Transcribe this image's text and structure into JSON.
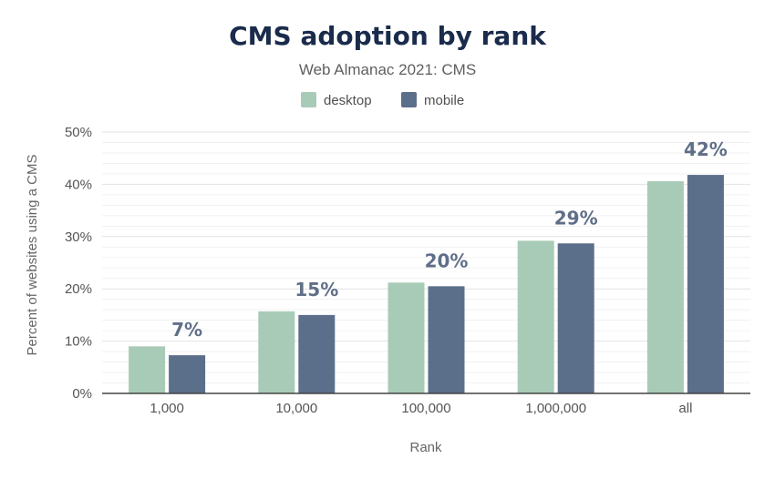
{
  "chart_data": {
    "type": "bar",
    "title": "CMS adoption by rank",
    "subtitle": "Web Almanac 2021: CMS",
    "xlabel": "Rank",
    "ylabel": "Percent of websites using a CMS",
    "categories": [
      "1,000",
      "10,000",
      "100,000",
      "1,000,000",
      "all"
    ],
    "series": [
      {
        "name": "desktop",
        "color": "#a8cbb7",
        "values": [
          9.0,
          15.7,
          21.2,
          29.2,
          40.6
        ]
      },
      {
        "name": "mobile",
        "color": "#5c6f8a",
        "values": [
          7.3,
          15.0,
          20.5,
          28.7,
          41.8
        ]
      }
    ],
    "data_labels": [
      "7%",
      "15%",
      "20%",
      "29%",
      "42%"
    ],
    "ylim": [
      0,
      50
    ],
    "yticks": [
      "0%",
      "10%",
      "20%",
      "30%",
      "40%",
      "50%"
    ],
    "grid": true,
    "legend_position": "top-center"
  }
}
